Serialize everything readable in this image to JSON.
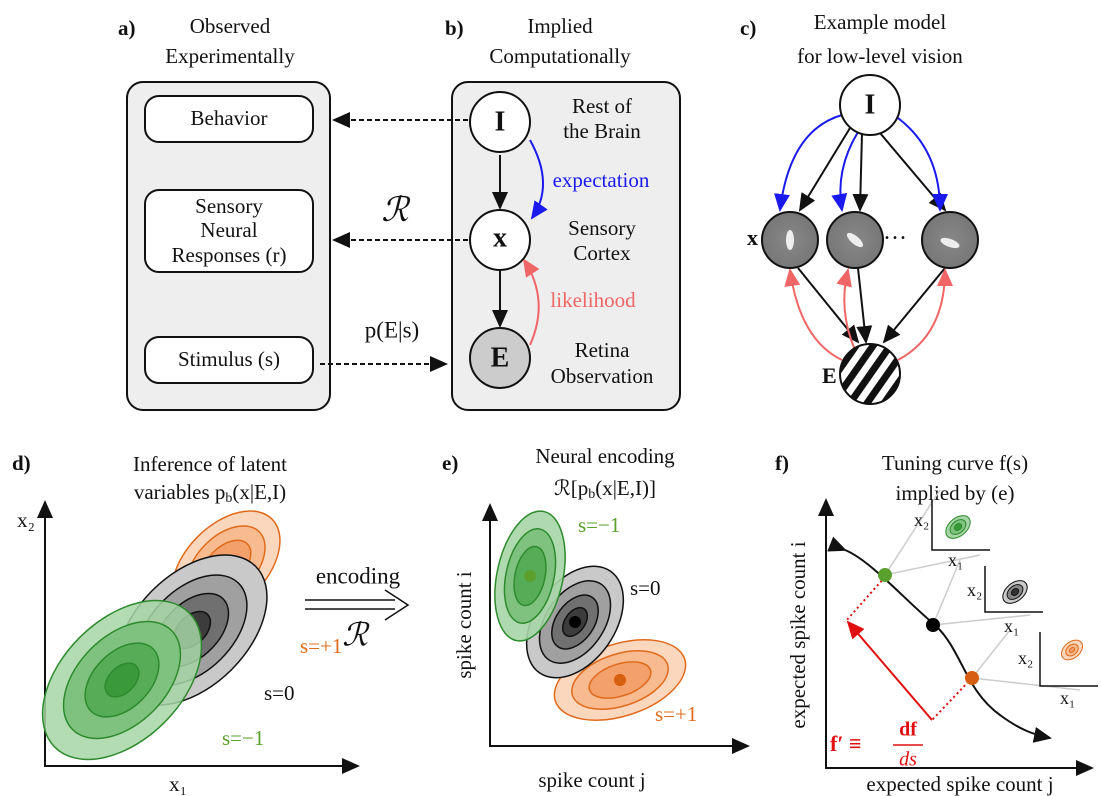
{
  "panel_a": {
    "label": "a)",
    "title": [
      "Observed",
      "Experimentally"
    ],
    "boxes": [
      [
        "Behavior"
      ],
      [
        "Sensory",
        "Neural",
        "Responses (r)"
      ],
      [
        "Stimulus (s)"
      ]
    ]
  },
  "panel_b": {
    "label": "b)",
    "title": [
      "Implied",
      "Computationally"
    ],
    "nodes": [
      "I",
      "x",
      "E"
    ],
    "node_labels": [
      [
        "Rest of",
        "the Brain"
      ],
      [
        "Sensory",
        "Cortex"
      ],
      [
        "Retina",
        "Observation"
      ]
    ],
    "expectation": "expectation",
    "likelihood": "likelihood",
    "response_map": "ℛ",
    "stimulus_map": "p(E|s)"
  },
  "panel_c": {
    "label": "c)",
    "title": [
      "Example model",
      "for low-level vision"
    ],
    "nodes": [
      "I",
      "x",
      "E"
    ],
    "ellipsis": "···"
  },
  "panel_d": {
    "label": "d)",
    "title": "Inference of latent",
    "subtitle": [
      "variables p",
      "b",
      "(x|E,I)"
    ],
    "x_axis": "x₁",
    "y_axis": "x₂",
    "arrow_label": "encoding",
    "arrow_symbol": "ℛ",
    "curves": [
      "s=+1",
      "s=0",
      "s=−1"
    ]
  },
  "panel_e": {
    "label": "e)",
    "title": "Neural encoding",
    "subtitle": [
      "ℛ[p",
      "b",
      "(x|E,I)]"
    ],
    "x_axis": "spike count j",
    "y_axis": "spike count i",
    "curves": [
      "s=−1",
      "s=0",
      "s=+1"
    ]
  },
  "panel_f": {
    "label": "f)",
    "title": "Tuning curve f(s)",
    "subtitle": "implied by (e)",
    "x_axis": "expected spike count j",
    "y_axis": "expected spike count i",
    "insets": [
      {
        "y": "x₂",
        "x": "x₁"
      },
      {
        "y": "x₂",
        "x": "x₁"
      },
      {
        "y": "x₂",
        "x": "x₁"
      }
    ],
    "derivative": [
      "f′ ≡",
      "df",
      "ds"
    ]
  }
}
